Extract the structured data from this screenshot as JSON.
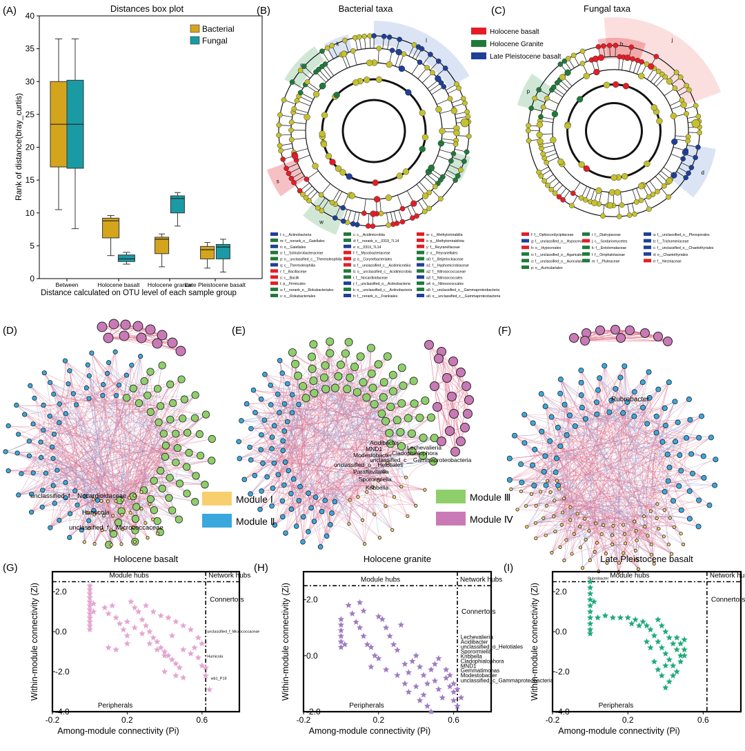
{
  "colors": {
    "bacterial": "#d4a51c",
    "fungal": "#1a9ba3",
    "holocene_basalt": "#e41d25",
    "holocene_granite": "#1f7a3a",
    "late_pleistocene": "#1f3f99",
    "node_yellow": "#c5c12e",
    "module1": "#f7cf6f",
    "module2": "#3aa8dd",
    "module3": "#8fcf6b",
    "module4": "#c97ab6",
    "edge_pos": "#e0708a",
    "edge_neg": "#8b9ad6",
    "zipi_g": "#e3a6d0",
    "zipi_h": "#9f7bbf",
    "zipi_i": "#1faa79"
  },
  "panels": {
    "a": "(A)",
    "b": "(B)",
    "c": "(C)",
    "d": "(D)",
    "e": "(E)",
    "f": "(F)",
    "g": "(G)",
    "h": "(H)",
    "i": "(I)"
  },
  "chart_data": [
    {
      "type": "box",
      "panel": "A",
      "title": "Distances box plot",
      "xlabel": "Distance calculated on OTU level of each sample group",
      "ylabel": "Rank of distance(bray_curtis)",
      "ylim": [
        0,
        40
      ],
      "yticks": [
        0,
        5,
        10,
        15,
        20,
        25,
        30,
        35,
        40
      ],
      "categories": [
        "Between",
        "Holocene basalt",
        "Holocene granite",
        "Late Pleistocene basalt"
      ],
      "series": [
        {
          "name": "Bacterial",
          "boxes": [
            {
              "min": 10.5,
              "q1": 17,
              "median": 23.5,
              "q3": 30,
              "max": 36.5
            },
            {
              "min": 3.5,
              "q1": 6.2,
              "median": 8.8,
              "q3": 9.2,
              "max": 9.6
            },
            {
              "min": 1.8,
              "q1": 3.8,
              "median": 6,
              "q3": 6.3,
              "max": 6.8
            },
            {
              "min": 1.6,
              "q1": 3,
              "median": 4.4,
              "q3": 4.9,
              "max": 5.5
            }
          ]
        },
        {
          "name": "Fungal",
          "boxes": [
            {
              "min": 7.6,
              "q1": 16.8,
              "median": 23.5,
              "q3": 30.2,
              "max": 36.5
            },
            {
              "min": 2.2,
              "q1": 2.6,
              "median": 3,
              "q3": 3.6,
              "max": 4
            },
            {
              "min": 8,
              "q1": 10,
              "median": 12.2,
              "q3": 12.6,
              "max": 13.1
            },
            {
              "min": 1,
              "q1": 3,
              "median": 4.8,
              "q3": 5.2,
              "max": 6
            }
          ]
        }
      ]
    },
    {
      "type": "scatter",
      "panel": "G",
      "title": "Holocene basalt",
      "xlabel": "Among-module connectivity (Pi)",
      "ylabel": "Within-module connectivity (Zi)",
      "xlim": [
        -0.2,
        0.8
      ],
      "ylim": [
        -4,
        3
      ],
      "xticks": [
        "-0.2",
        "0.2",
        "0.6"
      ],
      "yticks": [
        "2.0",
        "0.0",
        "-2.0",
        "-4.0"
      ],
      "threshold_x": 0.62,
      "threshold_y": 2.5,
      "quadrants": [
        "Module hubs",
        "Network hubs",
        "Connertors",
        "Peripherals"
      ],
      "annotations": [
        {
          "text": "unclassified_f_Micrococcaceae",
          "x": 0.62,
          "y": -0.05
        },
        {
          "text": "Humicola",
          "x": 0.62,
          "y": -1.3
        },
        {
          "text": "wb1_P19",
          "x": 0.64,
          "y": -2.4
        }
      ],
      "points": [
        [
          0,
          2.3
        ],
        [
          0,
          2.1
        ],
        [
          0,
          1.9
        ],
        [
          0,
          1.7
        ],
        [
          0,
          1.5
        ],
        [
          0,
          1.3
        ],
        [
          0,
          1.1
        ],
        [
          0,
          0.9
        ],
        [
          0,
          0.7
        ],
        [
          0,
          0.5
        ],
        [
          0,
          0.3
        ],
        [
          0,
          0.1
        ],
        [
          0.02,
          1.0
        ],
        [
          0.02,
          1.4
        ],
        [
          0.08,
          1.2
        ],
        [
          0.1,
          0.9
        ],
        [
          0.12,
          1.3
        ],
        [
          0.14,
          0.7
        ],
        [
          0.16,
          0.4
        ],
        [
          0.18,
          0.1
        ],
        [
          0.2,
          -0.2
        ],
        [
          0.22,
          1.5
        ],
        [
          0.24,
          1.2
        ],
        [
          0.26,
          1.0
        ],
        [
          0.28,
          0.6
        ],
        [
          0.3,
          0.3
        ],
        [
          0.32,
          0.0
        ],
        [
          0.34,
          -0.3
        ],
        [
          0.36,
          -0.5
        ],
        [
          0.38,
          -0.8
        ],
        [
          0.4,
          -1.0
        ],
        [
          0.42,
          -1.2
        ],
        [
          0.44,
          -1.4
        ],
        [
          0.46,
          -1.6
        ],
        [
          0.48,
          -1.8
        ],
        [
          0.3,
          1.3
        ],
        [
          0.34,
          1.0
        ],
        [
          0.38,
          0.8
        ],
        [
          0.42,
          0.7
        ],
        [
          0.46,
          0.5
        ],
        [
          0.5,
          0.3
        ],
        [
          0.54,
          0.1
        ],
        [
          0.58,
          -0.3
        ],
        [
          0.6,
          -0.6
        ],
        [
          0.2,
          0.5
        ],
        [
          0.24,
          0.2
        ],
        [
          0.28,
          -0.1
        ],
        [
          0.32,
          -0.6
        ],
        [
          0.36,
          -0.9
        ],
        [
          0.4,
          -1.2
        ],
        [
          0.5,
          -0.9
        ],
        [
          0.54,
          -1.1
        ],
        [
          0.58,
          -1.3
        ],
        [
          0.6,
          -1.7
        ],
        [
          0.1,
          -0.8
        ],
        [
          0.14,
          -0.9
        ],
        [
          0.2,
          -0.6
        ],
        [
          0.46,
          -2.2
        ],
        [
          0.5,
          -2.3
        ],
        [
          0.62,
          -1.8
        ],
        [
          0.64,
          -2.9
        ],
        [
          0.62,
          -2.2
        ],
        [
          0.4,
          -2.0
        ],
        [
          0.56,
          -0.8
        ],
        [
          0.44,
          -0.2
        ]
      ]
    },
    {
      "type": "scatter",
      "panel": "H",
      "title": "Holocene granite",
      "xlabel": "Among-module connectivity (Pi)",
      "ylabel": "Within-module connectivity (Zi)",
      "xlim": [
        -0.2,
        0.8
      ],
      "ylim": [
        -2,
        3
      ],
      "xticks": [
        "-0.2",
        "0.2",
        "0.6"
      ],
      "yticks": [
        "2.0",
        "0.0",
        "-2.0"
      ],
      "threshold_x": 0.62,
      "threshold_y": 2.5,
      "quadrants": [
        "Module hubs",
        "Network hubs",
        "Connertors",
        "Peripherals"
      ],
      "annotations": [
        {
          "text": "Lechevalieria",
          "x": 0.63,
          "y": 0.6
        },
        {
          "text": "Acidibacter",
          "x": 0.63,
          "y": 0.42
        },
        {
          "text": "unclassified_o_Helotiales",
          "x": 0.63,
          "y": 0.25
        },
        {
          "text": "Sporormiella",
          "x": 0.63,
          "y": 0.08
        },
        {
          "text": "Kribbella",
          "x": 0.63,
          "y": -0.09
        },
        {
          "text": "Cladophialophora",
          "x": 0.63,
          "y": -0.26
        },
        {
          "text": "MND1",
          "x": 0.63,
          "y": -0.43
        },
        {
          "text": "Gemmatimonas",
          "x": 0.63,
          "y": -0.6
        },
        {
          "text": "Modestobacter",
          "x": 0.63,
          "y": -0.77
        },
        {
          "text": "unclassified_c_Gammaproteobacteria",
          "x": 0.63,
          "y": -0.95
        }
      ],
      "points": [
        [
          0,
          1.3
        ],
        [
          0,
          1.1
        ],
        [
          0,
          0.9
        ],
        [
          0,
          0.7
        ],
        [
          0,
          0.5
        ],
        [
          0,
          0.3
        ],
        [
          0.02,
          0.4
        ],
        [
          0.04,
          1.8
        ],
        [
          0.06,
          1.5
        ],
        [
          0.08,
          1.2
        ],
        [
          0.1,
          1.0
        ],
        [
          0.12,
          0.7
        ],
        [
          0.14,
          0.4
        ],
        [
          0.16,
          0.3
        ],
        [
          0.18,
          0.0
        ],
        [
          0.1,
          1.9
        ],
        [
          0.12,
          1.6
        ],
        [
          0.2,
          1.4
        ],
        [
          0.22,
          1.3
        ],
        [
          0.24,
          1.0
        ],
        [
          0.26,
          0.7
        ],
        [
          0.28,
          0.4
        ],
        [
          0.3,
          0.2
        ],
        [
          0.32,
          1.1
        ],
        [
          0.34,
          -0.3
        ],
        [
          0.36,
          -0.6
        ],
        [
          0.38,
          -0.2
        ],
        [
          0.4,
          0.0
        ],
        [
          0.42,
          -0.4
        ],
        [
          0.44,
          -0.7
        ],
        [
          0.46,
          -1.0
        ],
        [
          0.48,
          -0.5
        ],
        [
          0.5,
          -0.9
        ],
        [
          0.52,
          -1.2
        ],
        [
          0.54,
          -1.5
        ],
        [
          0.56,
          -0.8
        ],
        [
          0.58,
          -1.1
        ],
        [
          0.6,
          -1.3
        ],
        [
          0.6,
          -1.6
        ],
        [
          0.62,
          -1.2
        ],
        [
          0.62,
          -1.8
        ],
        [
          0.64,
          -1.5
        ],
        [
          0.46,
          -1.8
        ],
        [
          0.44,
          -1.4
        ],
        [
          0.4,
          -1.1
        ],
        [
          0.36,
          -1.3
        ],
        [
          0.3,
          -0.7
        ],
        [
          0.24,
          -0.5
        ],
        [
          0.2,
          -0.1
        ],
        [
          0.16,
          -0.4
        ],
        [
          0.5,
          -0.3
        ],
        [
          0.52,
          -0.1
        ],
        [
          0.56,
          -0.5
        ],
        [
          0.58,
          -0.7
        ],
        [
          0.34,
          -1.0
        ],
        [
          0.42,
          -1.6
        ],
        [
          0.48,
          -2.0
        ],
        [
          0.6,
          -1.0
        ]
      ]
    },
    {
      "type": "scatter",
      "panel": "I",
      "title": "Late Pleistocene basalt",
      "xlabel": "Among-module connectivity (Pi)",
      "ylabel": "Within-module connectivity (Zi)",
      "xlim": [
        -0.2,
        0.8
      ],
      "ylim": [
        -4,
        3
      ],
      "xticks": [
        "-0.2",
        "0.2",
        "0.6"
      ],
      "yticks": [
        "2.0",
        "0.0",
        "-2.0",
        "-4.0"
      ],
      "threshold_x": 0.62,
      "threshold_y": 2.5,
      "quadrants": [
        "Module hubs",
        "Network hubs",
        "Connertors",
        "Peripherals"
      ],
      "annotations": [
        {
          "text": "Rubrobacter",
          "x": -0.02,
          "y": 2.6
        }
      ],
      "points": [
        [
          0,
          2.5
        ],
        [
          0,
          2.2
        ],
        [
          0,
          1.9
        ],
        [
          0,
          1.6
        ],
        [
          0,
          1.3
        ],
        [
          0,
          1.0
        ],
        [
          0,
          0.7
        ],
        [
          0,
          0.4
        ],
        [
          0,
          0.1
        ],
        [
          0,
          -0.1
        ],
        [
          0.02,
          1.5
        ],
        [
          0.04,
          0.7
        ],
        [
          0.08,
          0.8
        ],
        [
          0.12,
          0.7
        ],
        [
          0.16,
          0.7
        ],
        [
          0.2,
          0.7
        ],
        [
          0.24,
          0.6
        ],
        [
          0.28,
          0.5
        ],
        [
          0.3,
          0.3
        ],
        [
          0.32,
          0.1
        ],
        [
          0.34,
          -0.2
        ],
        [
          0.36,
          -0.5
        ],
        [
          0.38,
          -0.8
        ],
        [
          0.4,
          -1.1
        ],
        [
          0.42,
          -1.4
        ],
        [
          0.44,
          -1.7
        ],
        [
          0.46,
          -2.0
        ],
        [
          0.36,
          0.6
        ],
        [
          0.38,
          0.3
        ],
        [
          0.4,
          0.0
        ],
        [
          0.42,
          -0.3
        ],
        [
          0.44,
          -0.6
        ],
        [
          0.46,
          -0.9
        ],
        [
          0.48,
          -1.2
        ],
        [
          0.46,
          -0.3
        ],
        [
          0.48,
          -0.6
        ],
        [
          0.5,
          -0.9
        ],
        [
          0.5,
          -1.2
        ],
        [
          0.48,
          -1.5
        ],
        [
          0.42,
          -2.5
        ],
        [
          0.4,
          -2.8
        ],
        [
          0.38,
          -2.2
        ],
        [
          0.36,
          -1.9
        ],
        [
          0.34,
          -1.5
        ],
        [
          0.4,
          -1.7
        ],
        [
          0.44,
          -2.2
        ],
        [
          0.5,
          -0.4
        ],
        [
          0.32,
          -0.8
        ],
        [
          0.3,
          -0.5
        ],
        [
          0.26,
          0.3
        ],
        [
          0.22,
          0.4
        ]
      ]
    }
  ],
  "legend_a": {
    "bacterial": "Bacterial",
    "fungal": "Fungal"
  },
  "panel_b": {
    "title": "Bacterial taxa",
    "legend": [
      "Holocene basalt",
      "Holocene Granite",
      "Late Pleistocene basalt"
    ],
    "clade_labels": [
      "l",
      "n",
      "u",
      "o",
      "p",
      "q",
      "r",
      "s",
      "t",
      "v",
      "w",
      "x",
      "y",
      "z",
      "a",
      "b",
      "c",
      "d",
      "e",
      "f",
      "g",
      "h",
      "i",
      "j",
      "k",
      "m"
    ],
    "key": [
      "l: c__Actinobacteria",
      "m: f__norank_o__Gaiellales",
      "n: o__Gaiellales",
      "o: f__Solirubrobacteraceae",
      "p: o__unclassified_c__Thermoleophilia",
      "q: c__Thermoleophilia",
      "r: f__Bacillaceae",
      "s: c__Bacilli",
      "t: p__Firmicutes",
      "u: f__norank_o__Rokubacteriales",
      "v: o__Rokubacteriales",
      "c: c__Acidimicrobiia",
      "d: f__norank_o__0319_7L14",
      "e: o__0319_7L14",
      "f: f__Mycobacteriaceae",
      "g: o__Corynebacteriales",
      "a: f__unclassified_c__Acidimicrobiia",
      "b: o__unclassified_c__Acidimicrobiia",
      "i: f__Nocardioidaceae",
      "j: f__unclassified_o__Actinobacteria",
      "k: o__unclassified_c__Actinobacteria",
      "h: f__norank_o__Frankiales",
      "w: c__Methylomirabilia",
      "x: p__Methylomirabilota",
      "y: f__Reyranellaceae",
      "z: o__Reyranellales",
      "a0: f__Beijerinckiaceae",
      "a1: f__Hyphomicrobiaceae",
      "a2: f__Nitrosococcaceae",
      "a3: f__Nitrosococcales",
      "a4: o__Nitrosococcales",
      "a5: f__unclassified_o__Gammaproteobacteria",
      "a6: o__unclassified_c__Gammaproteobacteria"
    ]
  },
  "panel_c": {
    "title": "Fungal taxa",
    "clade_labels": [
      "j",
      "h",
      "g",
      "f",
      "e",
      "i",
      "k",
      "l",
      "m",
      "n",
      "o",
      "p",
      "a",
      "b",
      "c",
      "d"
    ],
    "key": [
      "f: f__Ophiocordycipitaceae",
      "g: f__unclassified_o__Hypocreales",
      "h: o__Hypocreales",
      "n: f__unclassified_o__Agaricales",
      "o: f__unclassified_o__Auriculariales",
      "p: o__Auriculariales",
      "i: f__Diatrypaceae",
      "j: c__Sordariomycetes",
      "k: f__Entolomataceae",
      "l: f__Omphalotaceae",
      "m: f__Pluteaceae",
      "a: f__unclassified_o__Pleosporales",
      "b: f__Trichomeriaceae",
      "c: f__unclassified_o__Chaetothyriales",
      "d: o__Chaetothyriales",
      "e: f__Nectriaceae"
    ]
  },
  "panel_d": {
    "labels": [
      "unclassified_f__Nocardioidaceae",
      "Humicola",
      "unclassified_f__Micrococcaceae"
    ]
  },
  "panel_e": {
    "labels": [
      "Acidibacter",
      "Lechevalieria",
      "MND1",
      "Modestobacter",
      "Cladophialophora",
      "unclassified_o__Helotiales",
      "unclassified_c__Gammaproteobacteria",
      "Paraflavitalea",
      "Sporormiella",
      "Kribbella"
    ]
  },
  "panel_f": {
    "labels": [
      "Rubrobacter"
    ]
  },
  "modules": {
    "m1": "Module Ⅰ",
    "m2": "Module Ⅱ",
    "m3": "Module Ⅲ",
    "m4": "Module Ⅳ"
  }
}
